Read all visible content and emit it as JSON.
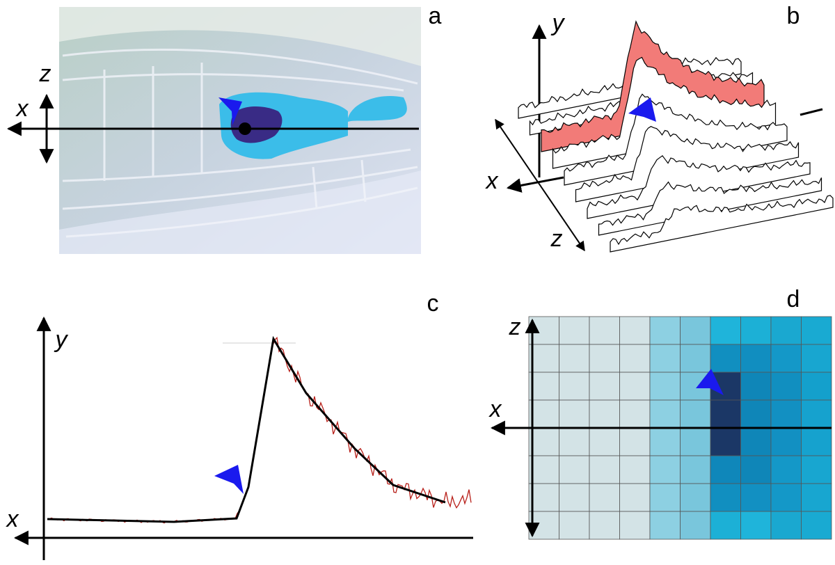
{
  "panels": [
    {
      "label": "a",
      "axis_labels": [
        "z",
        "x"
      ]
    },
    {
      "label": "b",
      "axis_labels": [
        "y",
        "x",
        "z"
      ]
    },
    {
      "label": "c",
      "axis_labels": [
        "y",
        "x"
      ]
    },
    {
      "label": "d",
      "axis_labels": [
        "z",
        "x"
      ]
    }
  ]
}
